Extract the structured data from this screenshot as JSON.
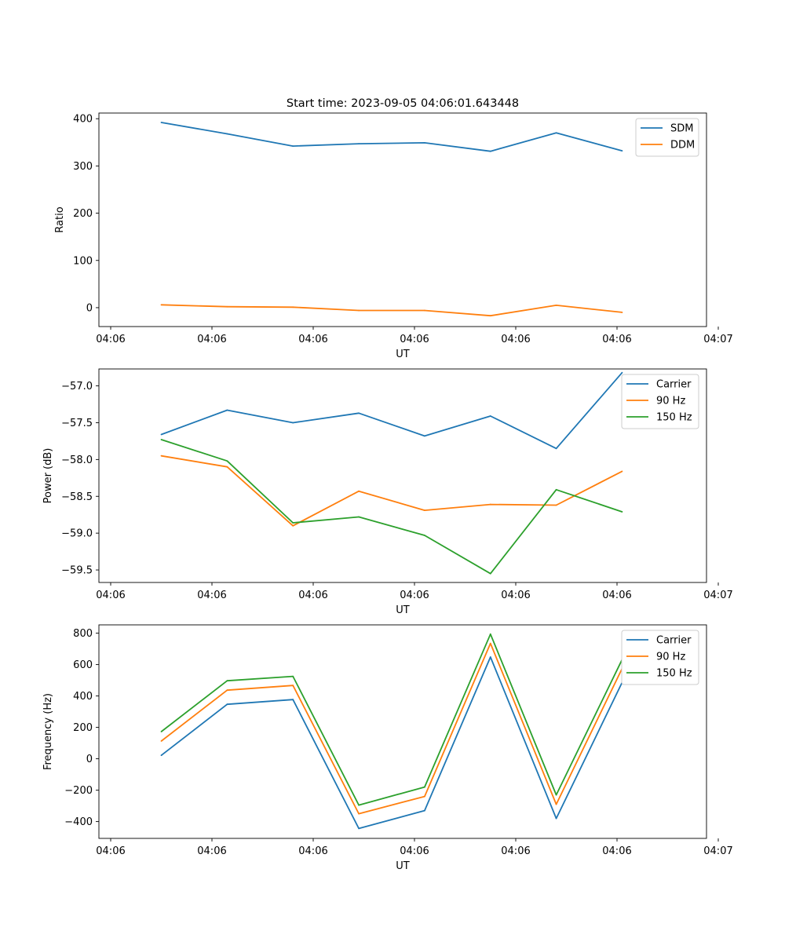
{
  "figure_title": "Start time: 2023-09-05 04:06:01.643448",
  "chart_data": [
    {
      "type": "line",
      "title": "Start time: 2023-09-05 04:06:01.643448",
      "xlabel": "UT",
      "ylabel": "Ratio",
      "xticks": [
        "04:06",
        "04:06",
        "04:06",
        "04:06",
        "04:06",
        "04:06",
        "04:07"
      ],
      "xlim": [
        0,
        6
      ],
      "ylim": [
        -40,
        412
      ],
      "yticks": [
        0,
        100,
        200,
        300,
        400
      ],
      "x": [
        0.5,
        1.15,
        1.8,
        2.45,
        3.1,
        3.75,
        4.4,
        5.05
      ],
      "series": [
        {
          "name": "SDM",
          "color": "#1f77b4",
          "values": [
            392,
            368,
            342,
            347,
            349,
            331,
            370,
            332
          ]
        },
        {
          "name": "DDM",
          "color": "#ff7f0e",
          "values": [
            6,
            2,
            1,
            -6,
            -6,
            -17,
            5,
            -10
          ]
        }
      ],
      "legend": "top-right"
    },
    {
      "type": "line",
      "title": "",
      "xlabel": "UT",
      "ylabel": "Power (dB)",
      "xticks": [
        "04:06",
        "04:06",
        "04:06",
        "04:06",
        "04:06",
        "04:06",
        "04:07"
      ],
      "xlim": [
        0,
        6
      ],
      "ylim": [
        -59.67,
        -56.77
      ],
      "yticks": [
        -57.0,
        -57.5,
        -58.0,
        -58.5,
        -59.0,
        -59.5
      ],
      "x": [
        0.5,
        1.15,
        1.8,
        2.45,
        3.1,
        3.75,
        4.4,
        5.05
      ],
      "series": [
        {
          "name": "Carrier",
          "color": "#1f77b4",
          "values": [
            -57.66,
            -57.33,
            -57.5,
            -57.37,
            -57.68,
            -57.41,
            -57.85,
            -56.82
          ]
        },
        {
          "name": "90 Hz",
          "color": "#ff7f0e",
          "values": [
            -57.95,
            -58.1,
            -58.9,
            -58.43,
            -58.69,
            -58.61,
            -58.62,
            -58.16
          ]
        },
        {
          "name": "150 Hz",
          "color": "#2ca02c",
          "values": [
            -57.73,
            -58.02,
            -58.86,
            -58.78,
            -59.03,
            -59.55,
            -58.41,
            -58.71
          ]
        }
      ],
      "legend": "top-right"
    },
    {
      "type": "line",
      "title": "",
      "xlabel": "UT",
      "ylabel": "Frequency (Hz)",
      "xticks": [
        "04:06",
        "04:06",
        "04:06",
        "04:06",
        "04:06",
        "04:06",
        "04:07"
      ],
      "xlim": [
        0,
        6
      ],
      "ylim": [
        -507,
        853
      ],
      "yticks": [
        800,
        600,
        400,
        200,
        0,
        -200,
        -400
      ],
      "x": [
        0.5,
        1.15,
        1.8,
        2.45,
        3.1,
        3.75,
        4.4,
        5.05
      ],
      "series": [
        {
          "name": "Carrier",
          "color": "#1f77b4",
          "values": [
            22,
            347,
            377,
            -444,
            -330,
            648,
            -380,
            486
          ]
        },
        {
          "name": "90 Hz",
          "color": "#ff7f0e",
          "values": [
            113,
            437,
            467,
            -350,
            -240,
            735,
            -290,
            575
          ]
        },
        {
          "name": "150 Hz",
          "color": "#2ca02c",
          "values": [
            173,
            497,
            525,
            -295,
            -180,
            794,
            -230,
            632
          ]
        }
      ],
      "legend": "top-right"
    }
  ]
}
